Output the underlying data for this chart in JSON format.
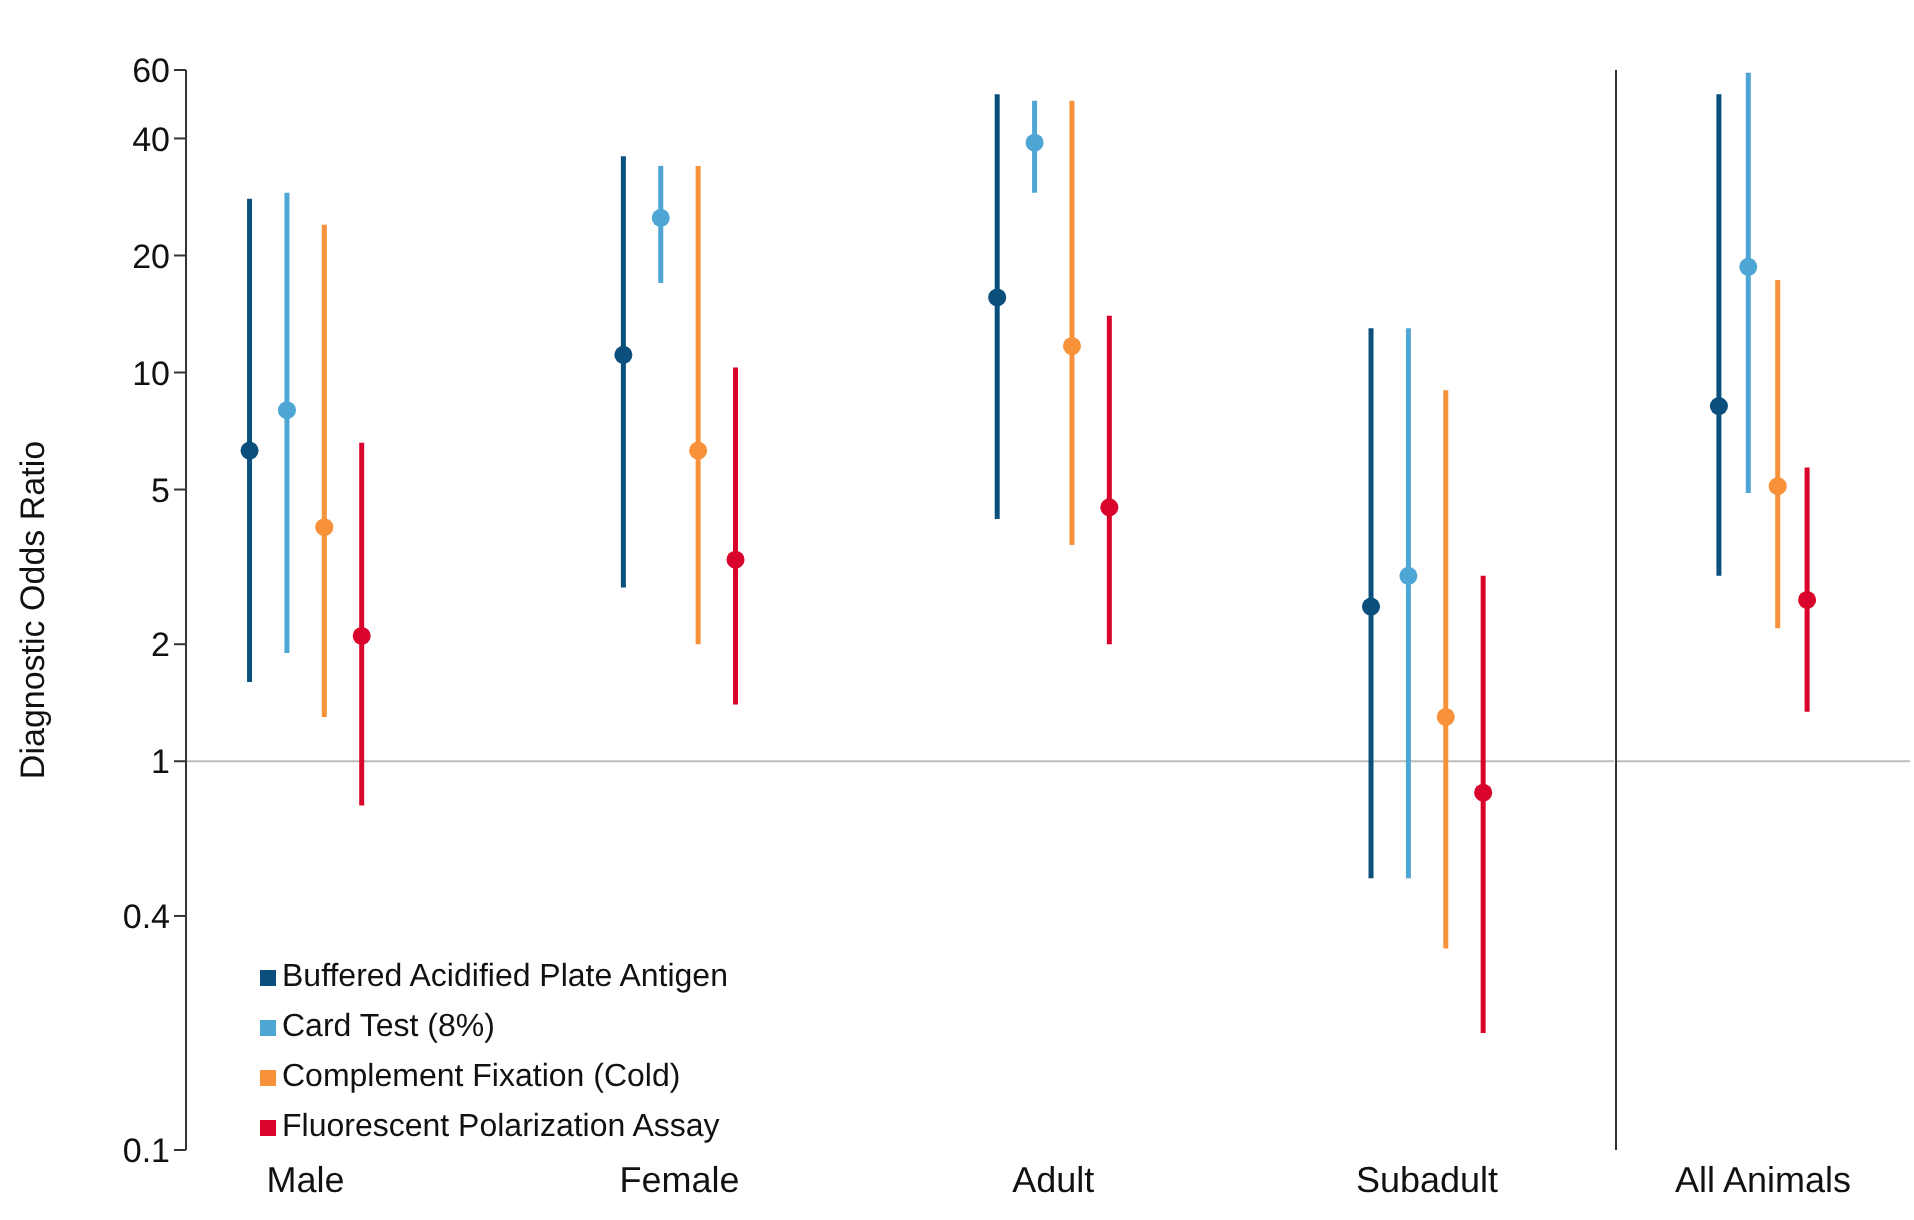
{
  "chart_data": [
    {
      "type": "scatter",
      "ylabel": "Diagnostic Odds Ratio",
      "categories": [
        "Male",
        "Female",
        "Adult",
        "Subadult"
      ],
      "log": "y",
      "grid": false,
      "legend": "bottom left",
      "marker": "circle",
      "ylim": [
        0.1,
        60
      ],
      "yticks": [
        0.1,
        0.4,
        1,
        2,
        5,
        10,
        20,
        40,
        60
      ],
      "ref_lines": [
        {
          "axis": "y",
          "value": 1,
          "color": "#bdbdbd"
        }
      ],
      "series": [
        {
          "name": "Buffered Acidified Plate Antigen",
          "color": "#0b4f7c",
          "values": [
            6.3,
            11.1,
            15.6,
            2.5
          ],
          "errors": [
            [
              1.6,
              28
            ],
            [
              2.8,
              36
            ],
            [
              4.2,
              52
            ],
            [
              0.5,
              13
            ]
          ]
        },
        {
          "name": "Card Test (8%)",
          "color": "#4ea6d4",
          "values": [
            8,
            25,
            39,
            3
          ],
          "errors": [
            [
              1.9,
              29
            ],
            [
              17,
              34
            ],
            [
              29,
              50
            ],
            [
              0.5,
              13
            ]
          ]
        },
        {
          "name": "Complement Fixation (Cold)",
          "color": "#f7923a",
          "values": [
            4,
            6.3,
            11.7,
            1.3
          ],
          "errors": [
            [
              1.3,
              24
            ],
            [
              2,
              34
            ],
            [
              3.6,
              50
            ],
            [
              0.33,
              9
            ]
          ]
        },
        {
          "name": "Fluorescent Polarization Assay",
          "color": "#d9042b",
          "values": [
            2.1,
            3.3,
            4.5,
            0.83
          ],
          "errors": [
            [
              0.77,
              6.6
            ],
            [
              1.4,
              10.3
            ],
            [
              2,
              14
            ],
            [
              0.2,
              3
            ]
          ]
        }
      ]
    },
    {
      "type": "scatter",
      "categories": [
        "All Animals"
      ],
      "log": "y",
      "grid": false,
      "marker": "circle",
      "tick_labels": "x",
      "ylim": [
        0.1,
        60
      ],
      "yticks": [
        0.1,
        0.4,
        1,
        2,
        5,
        10,
        20,
        40,
        60
      ],
      "ref_lines": [
        {
          "axis": "y",
          "value": 1,
          "color": "#bdbdbd"
        }
      ],
      "series": [
        {
          "color": "#0b4f7c",
          "values": [
            8.2
          ],
          "errors": [
            [
              3,
              52
            ]
          ]
        },
        {
          "color": "#4ea6d4",
          "values": [
            18.7
          ],
          "errors": [
            [
              4.9,
              59
            ]
          ]
        },
        {
          "color": "#f7923a",
          "values": [
            5.1
          ],
          "errors": [
            [
              2.2,
              17.3
            ]
          ]
        },
        {
          "color": "#d9042b",
          "values": [
            2.6
          ],
          "errors": [
            [
              1.34,
              5.7
            ]
          ]
        }
      ]
    }
  ]
}
